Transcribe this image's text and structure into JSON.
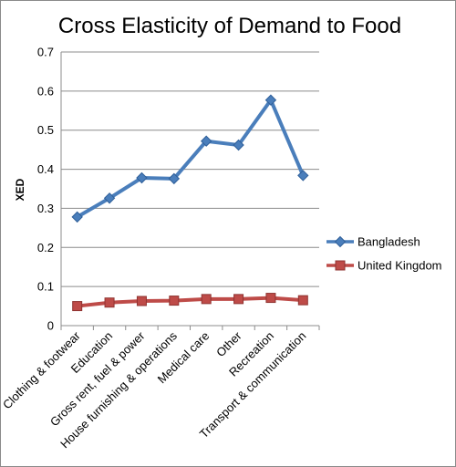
{
  "chart_data": {
    "type": "line",
    "title": "Cross Elasticity of Demand to Food",
    "xlabel": "",
    "ylabel": "XED",
    "ylim": [
      0,
      0.7
    ],
    "yticks": [
      "0",
      "0.1",
      "0.2",
      "0.3",
      "0.4",
      "0.5",
      "0.6",
      "0.7"
    ],
    "grid": true,
    "legend_position": "right",
    "categories": [
      "Clothing & footwear",
      "Education",
      "Gross rent, fuel & power",
      "House furnishing & operations",
      "Medical care",
      "Other",
      "Recreation",
      "Transport & communication"
    ],
    "series": [
      {
        "name": "Bangladesh",
        "color": "#4a7ebb",
        "marker": "diamond",
        "values": [
          0.278,
          0.326,
          0.378,
          0.376,
          0.472,
          0.462,
          0.577,
          0.384
        ]
      },
      {
        "name": "United Kingdom",
        "color": "#be4b48",
        "marker": "square",
        "values": [
          0.05,
          0.059,
          0.063,
          0.064,
          0.068,
          0.068,
          0.071,
          0.065
        ]
      }
    ]
  }
}
